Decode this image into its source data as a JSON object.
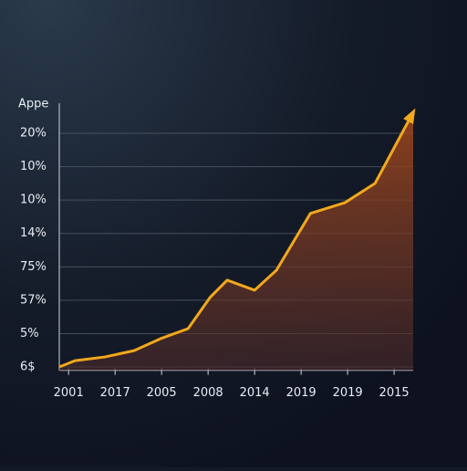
{
  "chart_data": {
    "type": "line",
    "y_label": "Appe",
    "x": [
      -0.2,
      0.14,
      0.78,
      1.41,
      1.98,
      2.57,
      3.04,
      3.41,
      4.0,
      4.47,
      5.2,
      5.94,
      6.59,
      7.41
    ],
    "series": [
      {
        "color": "#f2a81d",
        "values": [
          0,
          0.19,
          0.3,
          0.49,
          0.85,
          1.15,
          2.08,
          2.6,
          2.3,
          2.9,
          4.6,
          4.92,
          5.5,
          7.63
        ]
      }
    ],
    "xlim": [
      -0.2,
      7.41
    ],
    "xticks": [
      {
        "value": 0,
        "label": "2001"
      },
      {
        "value": 1,
        "label": "2017"
      },
      {
        "value": 2,
        "label": "2005"
      },
      {
        "value": 3,
        "label": "2008"
      },
      {
        "value": 4,
        "label": "2014"
      },
      {
        "value": 5,
        "label": "2019"
      },
      {
        "value": 6,
        "label": "2019"
      },
      {
        "value": 7,
        "label": "2015"
      }
    ],
    "ylim": [
      -0.1,
      7.9
    ],
    "yticks": [
      {
        "value": 0,
        "label": "6$"
      },
      {
        "value": 1,
        "label": "5%"
      },
      {
        "value": 2,
        "label": "57%"
      },
      {
        "value": 3,
        "label": "75%"
      },
      {
        "value": 4,
        "label": "14%"
      },
      {
        "value": 5,
        "label": "10%"
      },
      {
        "value": 6,
        "label": "10%"
      },
      {
        "value": 7,
        "label": "20%"
      }
    ],
    "grid": true
  }
}
